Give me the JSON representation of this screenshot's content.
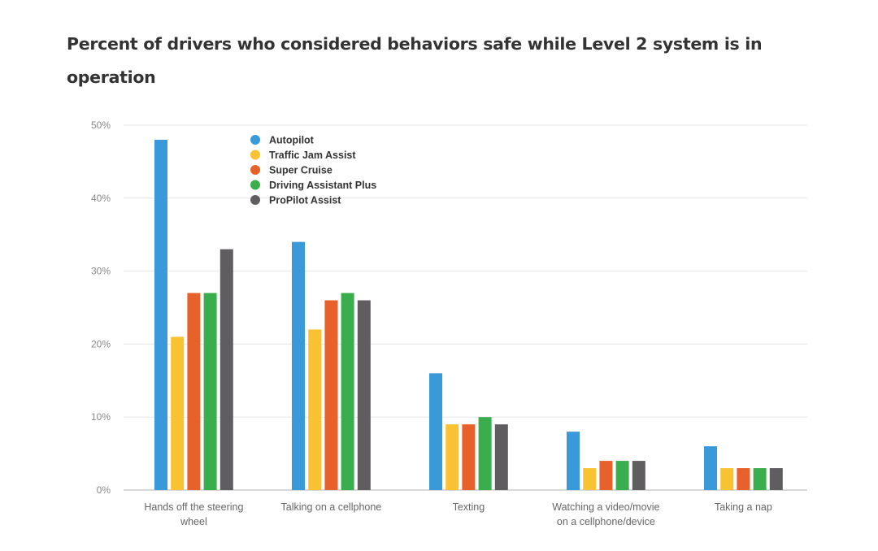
{
  "chart_data": {
    "type": "bar",
    "title": "Percent of drivers who considered behaviors safe while Level 2 system is in operation",
    "xlabel": "",
    "ylabel": "",
    "ylim": [
      0,
      50
    ],
    "yticks": [
      0,
      10,
      20,
      30,
      40,
      50
    ],
    "ytick_labels": [
      "0%",
      "10%",
      "20%",
      "30%",
      "40%",
      "50%"
    ],
    "grid": true,
    "legend_position": "top-left",
    "categories": [
      [
        "Hands off the steering",
        "wheel"
      ],
      [
        "Talking on a cellphone"
      ],
      [
        "Texting"
      ],
      [
        "Watching a video/movie",
        "on a cellphone/device"
      ],
      [
        "Taking a nap"
      ]
    ],
    "series": [
      {
        "name": "Autopilot",
        "color": "#3a9ad9",
        "values": [
          48,
          34,
          16,
          8,
          6
        ]
      },
      {
        "name": "Traffic Jam Assist",
        "color": "#f8c233",
        "values": [
          21,
          22,
          9,
          3,
          3
        ]
      },
      {
        "name": "Super Cruise",
        "color": "#e8602a",
        "values": [
          27,
          26,
          9,
          4,
          3
        ]
      },
      {
        "name": "Driving Assistant Plus",
        "color": "#3aad4c",
        "values": [
          27,
          27,
          10,
          4,
          3
        ]
      },
      {
        "name": "ProPilot Assist",
        "color": "#5f5d60",
        "values": [
          33,
          26,
          9,
          4,
          3
        ]
      }
    ]
  }
}
